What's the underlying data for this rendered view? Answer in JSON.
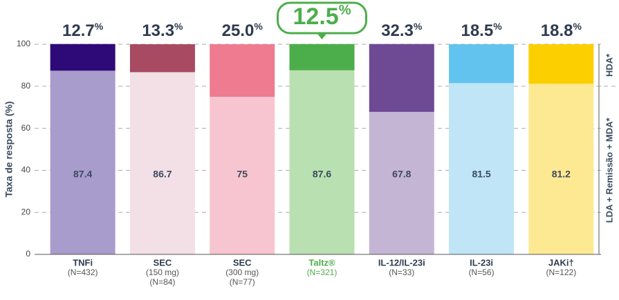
{
  "chart_data": {
    "type": "stacked_bar",
    "y_label": "Taxa de resposta (%)",
    "categories": [
      [
        "TNFi",
        "(N=432)"
      ],
      [
        "SEC",
        "(150 mg)",
        "(N=84)"
      ],
      [
        "SEC",
        "(300 mg)",
        "(N=77)"
      ],
      [
        "Taltz®",
        "(N=321)"
      ],
      [
        "IL-12/IL-23i",
        "(N=33)"
      ],
      [
        "IL-23i",
        "(N=56)"
      ],
      [
        "JAKi†",
        "(N=122)"
      ]
    ],
    "highlight": 3,
    "highlight_color": "#4cae4a",
    "series": [
      {
        "name": "LDA + Remissão + MDA*",
        "values": [
          87.4,
          86.7,
          75,
          87.6,
          67.8,
          81.5,
          81.2
        ],
        "colors": [
          "#a89ccc",
          "#f2e0e6",
          "#f7c5cf",
          "#b9e0b1",
          "#c5b5d5",
          "#bfe5f6",
          "#fde992"
        ]
      },
      {
        "name": "HDA*",
        "values": [
          12.7,
          13.3,
          25.0,
          12.5,
          32.3,
          18.5,
          18.8
        ],
        "value_labels": [
          "12.7%",
          "13.3%",
          "25.0%",
          "12.5%",
          "32.3%",
          "18.5%",
          "18.8%"
        ],
        "colors": [
          "#2d0a78",
          "#a84a62",
          "#ee7b90",
          "#4cae4a",
          "#6d4a93",
          "#62c3ef",
          "#fccf00"
        ]
      }
    ],
    "ylim": [
      0,
      100
    ],
    "yticks": [
      0,
      20,
      40,
      60,
      80,
      100
    ],
    "grid": true
  }
}
